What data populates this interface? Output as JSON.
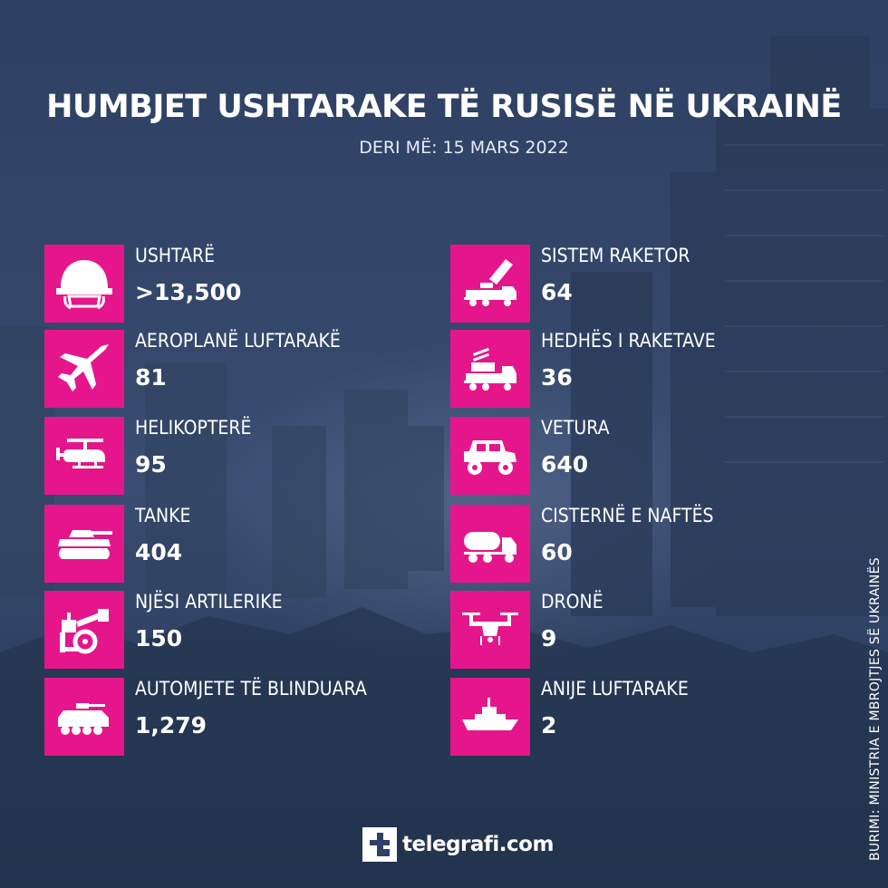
{
  "header": {
    "title": "HUMBJET USHTARAKE TË RUSISË NË UKRAINË",
    "subtitle": "DERI MË: 15 MARS 2022"
  },
  "colors": {
    "tile": "#e5168b",
    "background": "#34476b",
    "text": "#ffffff"
  },
  "left_column": [
    {
      "label": "USHTARË",
      "value": ">13,500",
      "icon": "helmet-icon"
    },
    {
      "label": "AEROPLANË LUFTARAKË",
      "value": "81",
      "icon": "fighter-jet-icon"
    },
    {
      "label": "HELIKOPTERË",
      "value": "95",
      "icon": "helicopter-icon"
    },
    {
      "label": "TANKE",
      "value": "404",
      "icon": "tank-icon"
    },
    {
      "label": "NJËSI ARTILERIKE",
      "value": "150",
      "icon": "artillery-icon"
    },
    {
      "label": "AUTOMJETE TË BLINDUARA",
      "value": "1,279",
      "icon": "armored-vehicle-icon"
    }
  ],
  "right_column": [
    {
      "label": "SISTEM RAKETOR",
      "value": "64",
      "icon": "rocket-launcher-icon"
    },
    {
      "label": "HEDHËS I RAKETAVE",
      "value": "36",
      "icon": "missile-truck-icon"
    },
    {
      "label": "VETURA",
      "value": "640",
      "icon": "vehicle-icon"
    },
    {
      "label": "CISTERNË E NAFTËS",
      "value": "60",
      "icon": "fuel-tanker-icon"
    },
    {
      "label": "DRONË",
      "value": "9",
      "icon": "drone-icon"
    },
    {
      "label": "ANIJE LUFTARAKE",
      "value": "2",
      "icon": "warship-icon"
    }
  ],
  "source": "BURIMI: MINISTRIA E MBROJTJES SË UKRAINËS",
  "brand": {
    "name": "telegrafi.com"
  }
}
